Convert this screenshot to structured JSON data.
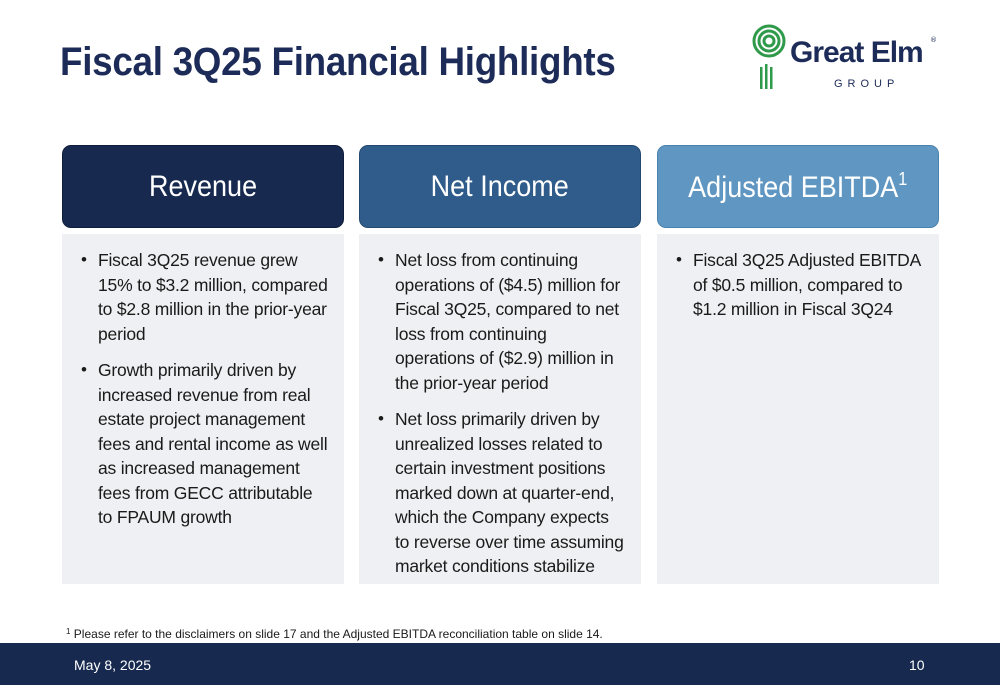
{
  "slide": {
    "title": "Fiscal 3Q25 Financial Highlights"
  },
  "logo": {
    "name": "Great Elm",
    "registered": "®",
    "sub": "GROUP"
  },
  "columns": [
    {
      "heading": "Revenue",
      "heading_sup": "",
      "bullets": [
        "Fiscal 3Q25 revenue grew 15% to $3.2 million, compared to $2.8 million in the prior-year period",
        "Growth primarily driven by increased revenue from real estate project management fees and rental income as well as increased management fees from GECC attributable to FPAUM growth"
      ]
    },
    {
      "heading": "Net Income",
      "heading_sup": "",
      "bullets": [
        "Net loss from continuing operations of ($4.5) million for Fiscal 3Q25, compared to net loss from continuing operations of ($2.9) million in the prior-year period",
        "Net loss primarily driven by unrealized losses related to certain investment positions marked down at quarter-end, which the Company expects to reverse over time assuming market conditions stabilize"
      ]
    },
    {
      "heading": "Adjusted EBITDA",
      "heading_sup": "1",
      "bullets": [
        "Fiscal 3Q25 Adjusted EBITDA of $0.5 million, compared to $1.2 million in Fiscal 3Q24"
      ]
    }
  ],
  "footnote": {
    "marker": "1",
    "text": "Please refer to the disclaimers on slide 17 and the Adjusted EBITDA reconciliation table on slide 14."
  },
  "footer": {
    "date": "May 8, 2025",
    "page": "10"
  },
  "colors": {
    "navy": "#17294f",
    "mid_blue": "#2f5c8a",
    "light_blue": "#5f97c2",
    "logo_green": "#2e9a4a",
    "panel_bg": "#eff0f3"
  },
  "bullet_glyph": "•"
}
